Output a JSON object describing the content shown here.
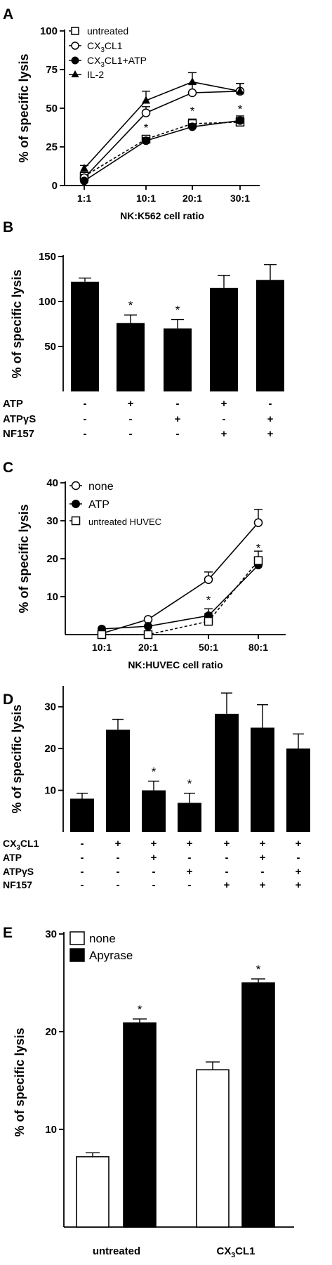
{
  "chart_data": [
    {
      "panel": "A",
      "type": "line",
      "x": [
        "1:1",
        "10:1",
        "20:1",
        "30:1"
      ],
      "xlabel": "NK:K562 cell ratio",
      "ylabel": "% of specific lysis",
      "ylim": [
        0,
        100
      ],
      "yticks": [
        "0",
        "25",
        "50",
        "75",
        "100"
      ],
      "legend": [
        "untreated",
        "CX3CL1",
        "CX3CL1+ATP",
        "IL-2"
      ],
      "series": [
        {
          "name": "untreated",
          "values": [
            6,
            30,
            40,
            41
          ],
          "errors": [
            2,
            2,
            3,
            3
          ],
          "marker": "open-square",
          "dashed": true
        },
        {
          "name": "CX3CL1",
          "values": [
            5,
            47,
            60,
            61
          ],
          "errors": [
            2,
            4,
            6,
            5
          ],
          "marker": "open-circle"
        },
        {
          "name": "CX3CL1+ATP",
          "values": [
            3,
            29,
            38,
            42
          ],
          "errors": [
            1,
            2,
            2,
            3
          ],
          "marker": "filled-circle"
        },
        {
          "name": "IL-2",
          "values": [
            11,
            55,
            67,
            61
          ],
          "errors": [
            2,
            6,
            6,
            5
          ],
          "marker": "filled-triangle"
        }
      ],
      "asterisks": [
        "",
        "*",
        "*",
        "*"
      ]
    },
    {
      "panel": "B",
      "type": "bar",
      "ylabel": "% of specific lysis",
      "ylim": [
        0,
        150
      ],
      "yticks": [
        "50",
        "100",
        "150"
      ],
      "values": [
        122,
        76,
        70,
        115,
        124
      ],
      "errors": [
        4,
        9,
        10,
        14,
        17
      ],
      "asterisks": [
        "",
        "*",
        "*",
        "",
        ""
      ],
      "conditions": [
        {
          "label": "ATP",
          "marks": [
            "-",
            "+",
            "-",
            "+",
            "-"
          ]
        },
        {
          "label": "ATPγS",
          "marks": [
            "-",
            "-",
            "+",
            "-",
            "+"
          ]
        },
        {
          "label": "NF157",
          "marks": [
            "-",
            "-",
            "-",
            "+",
            "+"
          ]
        }
      ]
    },
    {
      "panel": "C",
      "type": "line",
      "x": [
        "10:1",
        "20:1",
        "50:1",
        "80:1"
      ],
      "xlabel": "NK:HUVEC cell ratio",
      "ylabel": "% of specific lysis",
      "ylim": [
        0,
        40
      ],
      "yticks": [
        "10",
        "20",
        "30",
        "40"
      ],
      "legend": [
        "none",
        "ATP",
        "untreated HUVEC"
      ],
      "series": [
        {
          "name": "none",
          "values": [
            0.3,
            4,
            14.5,
            29.5
          ],
          "errors": [
            0,
            0,
            2,
            3.5
          ],
          "marker": "open-circle"
        },
        {
          "name": "ATP",
          "values": [
            1.5,
            2.2,
            5,
            18.3
          ],
          "errors": [
            0,
            0,
            1.8,
            2.2
          ],
          "marker": "filled-circle"
        },
        {
          "name": "untreated HUVEC",
          "values": [
            0,
            0,
            3.5,
            19.5
          ],
          "errors": [
            0,
            0,
            2,
            2.5
          ],
          "marker": "open-square",
          "dashed": true
        }
      ],
      "asterisks": [
        "",
        "",
        "*",
        "*"
      ]
    },
    {
      "panel": "D",
      "type": "bar",
      "ylabel": "% of specific lysis",
      "ylim": [
        0,
        35
      ],
      "yticks": [
        "10",
        "20",
        "30"
      ],
      "values": [
        8,
        24.5,
        10,
        7,
        28.3,
        25,
        20
      ],
      "errors": [
        1.3,
        2.5,
        2.2,
        2.3,
        5,
        5.5,
        3.5
      ],
      "asterisks": [
        "",
        "",
        "*",
        "*",
        "",
        "",
        ""
      ],
      "conditions": [
        {
          "label": "CX3CL1",
          "marks": [
            "-",
            "+",
            "+",
            "+",
            "+",
            "+",
            "+"
          ]
        },
        {
          "label": "ATP",
          "marks": [
            "-",
            "-",
            "+",
            "-",
            "-",
            "+",
            "-"
          ]
        },
        {
          "label": "ATPγS",
          "marks": [
            "-",
            "-",
            "-",
            "+",
            "-",
            "-",
            "+"
          ]
        },
        {
          "label": "NF157",
          "marks": [
            "-",
            "-",
            "-",
            "-",
            "+",
            "+",
            "+"
          ]
        }
      ]
    },
    {
      "panel": "E",
      "type": "bar",
      "ylabel": "% of specific lysis",
      "ylim": [
        0,
        30
      ],
      "yticks": [
        "10",
        "20",
        "30"
      ],
      "categories": [
        "untreated",
        "CX3CL1"
      ],
      "legend": [
        "none",
        "Apyrase"
      ],
      "series": [
        {
          "name": "none",
          "values": [
            7.2,
            16.1
          ],
          "errors": [
            0.4,
            0.8
          ],
          "fill": "#ffffff"
        },
        {
          "name": "Apyrase",
          "values": [
            20.9,
            25
          ],
          "errors": [
            0.4,
            0.4
          ],
          "fill": "#000000"
        }
      ],
      "asterisks": [
        [
          "",
          "*"
        ],
        [
          "",
          "*"
        ]
      ]
    }
  ]
}
